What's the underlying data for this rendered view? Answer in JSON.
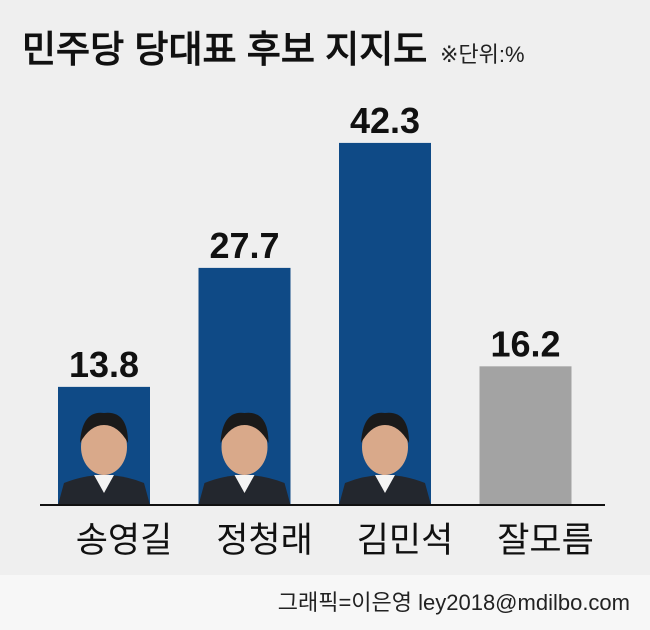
{
  "chart_data": {
    "type": "bar",
    "title": "민주당 당대표 후보 지지도",
    "subtitle": "※단위:%",
    "categories": [
      "송영길",
      "정청래",
      "김민석",
      "잘모름"
    ],
    "values": [
      13.8,
      27.7,
      42.3,
      16.2
    ],
    "colors": [
      "#0f4a86",
      "#0f4a86",
      "#0f4a86",
      "#a3a3a3"
    ],
    "credit": "그래픽=이은영 ley2018@mdilbo.com"
  }
}
